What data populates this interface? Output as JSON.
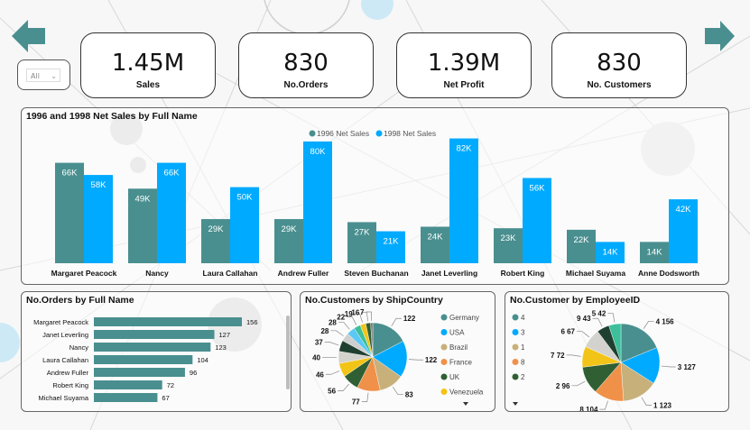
{
  "nav": {
    "back_icon": "arrow-left-icon",
    "forward_icon": "arrow-right-icon"
  },
  "slicer": {
    "value": "All",
    "icon": "chevron-down-icon"
  },
  "kpis": [
    {
      "value": "1.45M",
      "label": "Sales"
    },
    {
      "value": "830",
      "label": "No.Orders"
    },
    {
      "value": "1.39M",
      "label": "Net Profit"
    },
    {
      "value": "830",
      "label": "No. Customers"
    }
  ],
  "colors": {
    "teal": "#4a8f8f",
    "blue": "#00aaff",
    "tan": "#c8b07a",
    "orange": "#f0914a",
    "darkgreen": "#2f5f32",
    "yellow": "#f2c418",
    "light": "#d4d2cc"
  },
  "chart_data": [
    {
      "type": "bar",
      "title": "1996 and 1998 Net Sales by Full Name",
      "legend": "top-center",
      "categories": [
        "Margaret Peacock",
        "Nancy",
        "Laura Callahan",
        "Andrew Fuller",
        "Steven Buchanan",
        "Janet Leverling",
        "Robert King",
        "Michael Suyama",
        "Anne Dodsworth"
      ],
      "series": [
        {
          "name": "1996 Net Sales",
          "color": "#4a8f8f",
          "values": [
            66,
            49,
            29,
            29,
            27,
            24,
            23,
            22,
            14
          ],
          "labels": [
            "66K",
            "49K",
            "29K",
            "29K",
            "27K",
            "24K",
            "23K",
            "22K",
            "14K"
          ]
        },
        {
          "name": "1998 Net Sales",
          "color": "#00aaff",
          "values": [
            58,
            66,
            50,
            80,
            21,
            82,
            56,
            14,
            42
          ],
          "labels": [
            "58K",
            "66K",
            "50K",
            "80K",
            "21K",
            "82K",
            "56K",
            "14K",
            "42K"
          ]
        }
      ],
      "unit": "K",
      "ylim": [
        0,
        90
      ]
    },
    {
      "type": "bar",
      "orientation": "horizontal",
      "title": "No.Orders by Full Name",
      "categories": [
        "Margaret Peacock",
        "Janet Leverling",
        "Nancy",
        "Laura Callahan",
        "Andrew Fuller",
        "Robert King",
        "Michael Suyama"
      ],
      "values": [
        156,
        127,
        123,
        104,
        96,
        72,
        67
      ],
      "xlim": [
        0,
        156
      ]
    },
    {
      "type": "pie",
      "title": "No.Customers by ShipCountry",
      "legend": [
        "Germany",
        "USA",
        "Brazil",
        "France",
        "UK",
        "Venezuela"
      ],
      "values": [
        122,
        122,
        83,
        77,
        56,
        46,
        40,
        37,
        28,
        28,
        22,
        19,
        16,
        7
      ],
      "labels": [
        "122",
        "122",
        "83",
        "77",
        "56",
        "46",
        "40",
        "37",
        "28",
        "28",
        "22",
        "19",
        "16",
        "7"
      ]
    },
    {
      "type": "pie",
      "title": "No.Customer by EmployeeID",
      "legend": [
        "4",
        "3",
        "1",
        "8",
        "2"
      ],
      "categories": [
        "4",
        "3",
        "1",
        "8",
        "2",
        "7",
        "6",
        "9",
        "5"
      ],
      "values": [
        156,
        127,
        123,
        104,
        96,
        72,
        67,
        43,
        42
      ],
      "labels": [
        "4 156",
        "3 127",
        "1 123",
        "8 104",
        "2 96",
        "7 72",
        "6 67",
        "9 43",
        "5 42"
      ]
    }
  ]
}
